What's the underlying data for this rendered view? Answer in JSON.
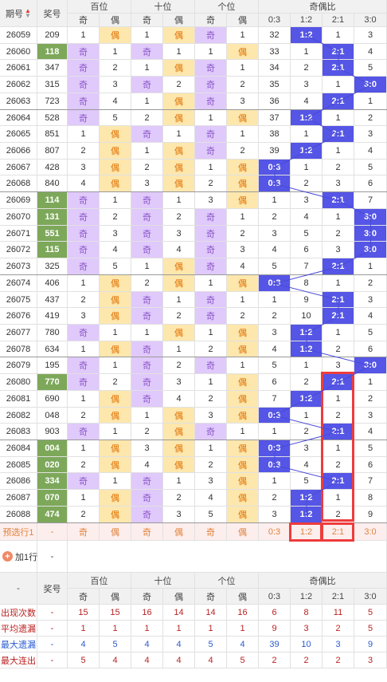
{
  "header": {
    "period": "期号",
    "award": "奖号",
    "groups": [
      "百位",
      "十位",
      "个位",
      "奇偶比"
    ],
    "sub_ji": "奇",
    "sub_ou": "偶",
    "ratios": [
      "0:3",
      "1:2",
      "2:1",
      "3:0"
    ]
  },
  "rows": [
    {
      "p": "26059",
      "a": "209",
      "h": "偶",
      "hm": 1,
      "t": "偶",
      "tm": 1,
      "u": "奇",
      "um": 1,
      "r": [
        "32",
        "1:2",
        "1",
        "3"
      ],
      "ri": 1
    },
    {
      "p": "26060",
      "a": "118",
      "h": "奇",
      "hm": 1,
      "t": "奇",
      "tm": 1,
      "u": "偶",
      "um": 1,
      "r": [
        "33",
        "1",
        "2:1",
        "4"
      ],
      "ri": 2
    },
    {
      "p": "26061",
      "a": "347",
      "h": "奇",
      "hm": 2,
      "t": "偶",
      "tm": 1,
      "u": "奇",
      "um": 1,
      "r": [
        "34",
        "2",
        "2:1",
        "5"
      ],
      "ri": 2
    },
    {
      "p": "26062",
      "a": "315",
      "h": "奇",
      "hm": 3,
      "t": "奇",
      "tm": 2,
      "u": "奇",
      "um": 2,
      "r": [
        "35",
        "3",
        "1",
        "3:0"
      ],
      "ri": 3
    },
    {
      "p": "26063",
      "a": "723",
      "h": "奇",
      "hm": 4,
      "t": "偶",
      "tm": 1,
      "u": "奇",
      "um": 3,
      "r": [
        "36",
        "4",
        "2:1",
        "1"
      ],
      "ri": 2
    },
    {
      "p": "26064",
      "a": "528",
      "h": "奇",
      "hm": 5,
      "t": "偶",
      "tm": 2,
      "u": "偶",
      "um": 1,
      "r": [
        "37",
        "1:2",
        "1",
        "2"
      ],
      "ri": 1
    },
    {
      "p": "26065",
      "a": "851",
      "h": "偶",
      "hm": 1,
      "t": "奇",
      "tm": 1,
      "u": "奇",
      "um": 1,
      "r": [
        "38",
        "1",
        "2:1",
        "3"
      ],
      "ri": 2
    },
    {
      "p": "26066",
      "a": "807",
      "h": "偶",
      "hm": 2,
      "t": "偶",
      "tm": 1,
      "u": "奇",
      "um": 2,
      "r": [
        "39",
        "1:2",
        "1",
        "4"
      ],
      "ri": 1
    },
    {
      "p": "26067",
      "a": "428",
      "h": "偶",
      "hm": 3,
      "t": "偶",
      "tm": 2,
      "u": "偶",
      "um": 1,
      "r": [
        "0:3",
        "1",
        "2",
        "5"
      ],
      "ri": 0
    },
    {
      "p": "26068",
      "a": "840",
      "h": "偶",
      "hm": 4,
      "t": "偶",
      "tm": 3,
      "u": "偶",
      "um": 2,
      "r": [
        "0:3",
        "2",
        "3",
        "6"
      ],
      "ri": 0
    },
    {
      "p": "26069",
      "a": "114",
      "h": "奇",
      "hm": 1,
      "t": "奇",
      "tm": 1,
      "u": "偶",
      "um": 3,
      "r": [
        "1",
        "3",
        "2:1",
        "7"
      ],
      "ri": 2
    },
    {
      "p": "26070",
      "a": "131",
      "h": "奇",
      "hm": 2,
      "t": "奇",
      "tm": 2,
      "u": "奇",
      "um": 1,
      "r": [
        "2",
        "4",
        "1",
        "3:0"
      ],
      "ri": 3
    },
    {
      "p": "26071",
      "a": "551",
      "h": "奇",
      "hm": 3,
      "t": "奇",
      "tm": 3,
      "u": "奇",
      "um": 2,
      "r": [
        "3",
        "5",
        "2",
        "3:0"
      ],
      "ri": 3
    },
    {
      "p": "26072",
      "a": "115",
      "h": "奇",
      "hm": 4,
      "t": "奇",
      "tm": 4,
      "u": "奇",
      "um": 3,
      "r": [
        "4",
        "6",
        "3",
        "3:0"
      ],
      "ri": 3
    },
    {
      "p": "26073",
      "a": "325",
      "h": "奇",
      "hm": 5,
      "t": "偶",
      "tm": 1,
      "u": "奇",
      "um": 4,
      "r": [
        "5",
        "7",
        "2:1",
        "1"
      ],
      "ri": 2
    },
    {
      "p": "26074",
      "a": "406",
      "h": "偶",
      "hm": 1,
      "t": "偶",
      "tm": 2,
      "u": "偶",
      "um": 1,
      "r": [
        "0:3",
        "8",
        "1",
        "2"
      ],
      "ri": 0
    },
    {
      "p": "26075",
      "a": "437",
      "h": "偶",
      "hm": 2,
      "t": "奇",
      "tm": 1,
      "u": "奇",
      "um": 1,
      "r": [
        "1",
        "9",
        "2:1",
        "3"
      ],
      "ri": 2
    },
    {
      "p": "26076",
      "a": "419",
      "h": "偶",
      "hm": 3,
      "t": "奇",
      "tm": 2,
      "u": "奇",
      "um": 2,
      "r": [
        "2",
        "10",
        "2:1",
        "4"
      ],
      "ri": 2
    },
    {
      "p": "26077",
      "a": "780",
      "h": "奇",
      "hm": 1,
      "t": "偶",
      "tm": 1,
      "u": "偶",
      "um": 1,
      "r": [
        "3",
        "1:2",
        "1",
        "5"
      ],
      "ri": 1
    },
    {
      "p": "26078",
      "a": "634",
      "h": "偶",
      "hm": 1,
      "t": "奇",
      "tm": 1,
      "u": "偶",
      "um": 2,
      "r": [
        "4",
        "1:2",
        "2",
        "6"
      ],
      "ri": 1
    },
    {
      "p": "26079",
      "a": "195",
      "h": "奇",
      "hm": 1,
      "t": "奇",
      "tm": 2,
      "u": "奇",
      "um": 1,
      "r": [
        "5",
        "1",
        "3",
        "3:0"
      ],
      "ri": 3
    },
    {
      "p": "26080",
      "a": "770",
      "h": "奇",
      "hm": 2,
      "t": "奇",
      "tm": 3,
      "u": "偶",
      "um": 1,
      "r": [
        "6",
        "2",
        "2:1",
        "1"
      ],
      "ri": 2
    },
    {
      "p": "26081",
      "a": "690",
      "h": "偶",
      "hm": 1,
      "t": "奇",
      "tm": 4,
      "u": "偶",
      "um": 2,
      "r": [
        "7",
        "1:2",
        "1",
        "2"
      ],
      "ri": 1
    },
    {
      "p": "26082",
      "a": "048",
      "h": "偶",
      "hm": 2,
      "t": "偶",
      "tm": 1,
      "u": "偶",
      "um": 3,
      "r": [
        "0:3",
        "1",
        "2",
        "3"
      ],
      "ri": 0
    },
    {
      "p": "26083",
      "a": "903",
      "h": "奇",
      "hm": 1,
      "t": "偶",
      "tm": 2,
      "u": "奇",
      "um": 1,
      "r": [
        "1",
        "2",
        "2:1",
        "4"
      ],
      "ri": 2
    },
    {
      "p": "26084",
      "a": "004",
      "h": "偶",
      "hm": 1,
      "t": "偶",
      "tm": 3,
      "u": "偶",
      "um": 1,
      "r": [
        "0:3",
        "3",
        "1",
        "5"
      ],
      "ri": 0
    },
    {
      "p": "26085",
      "a": "020",
      "h": "偶",
      "hm": 2,
      "t": "偶",
      "tm": 4,
      "u": "偶",
      "um": 2,
      "r": [
        "0:3",
        "4",
        "2",
        "6"
      ],
      "ri": 0
    },
    {
      "p": "26086",
      "a": "334",
      "h": "奇",
      "hm": 1,
      "t": "奇",
      "tm": 1,
      "u": "偶",
      "um": 3,
      "r": [
        "1",
        "5",
        "2:1",
        "7"
      ],
      "ri": 2
    },
    {
      "p": "26087",
      "a": "070",
      "h": "偶",
      "hm": 1,
      "t": "奇",
      "tm": 2,
      "u": "偶",
      "um": 4,
      "r": [
        "2",
        "1:2",
        "1",
        "8"
      ],
      "ri": 1
    },
    {
      "p": "26088",
      "a": "474",
      "h": "偶",
      "hm": 2,
      "t": "奇",
      "tm": 3,
      "u": "偶",
      "um": 5,
      "r": [
        "3",
        "1:2",
        "2",
        "9"
      ],
      "ri": 1
    }
  ],
  "row_miss_values": [
    {
      "h": [
        "1",
        "偶"
      ],
      "t": [
        "1",
        "偶"
      ],
      "u": [
        "奇",
        "1"
      ]
    },
    {
      "h": [
        "奇",
        "1"
      ],
      "t": [
        "奇",
        "1"
      ],
      "u": [
        "1",
        "偶"
      ]
    },
    {
      "h": [
        "奇",
        "2"
      ],
      "t": [
        "1",
        "偶"
      ],
      "u": [
        "奇",
        "1"
      ]
    },
    {
      "h": [
        "奇",
        "3"
      ],
      "t": [
        "奇",
        "2"
      ],
      "u": [
        "奇",
        "2"
      ]
    },
    {
      "h": [
        "奇",
        "4"
      ],
      "t": [
        "1",
        "偶"
      ],
      "u": [
        "奇",
        "3"
      ]
    },
    {
      "h": [
        "奇",
        "5"
      ],
      "t": [
        "2",
        "偶"
      ],
      "u": [
        "1",
        "偶"
      ]
    },
    {
      "h": [
        "1",
        "偶"
      ],
      "t": [
        "奇",
        "1"
      ],
      "u": [
        "奇",
        "1"
      ]
    },
    {
      "h": [
        "2",
        "偶"
      ],
      "t": [
        "1",
        "偶"
      ],
      "u": [
        "奇",
        "2"
      ]
    },
    {
      "h": [
        "3",
        "偶"
      ],
      "t": [
        "2",
        "偶"
      ],
      "u": [
        "1",
        "偶"
      ]
    },
    {
      "h": [
        "4",
        "偶"
      ],
      "t": [
        "3",
        "偶"
      ],
      "u": [
        "2",
        "偶"
      ]
    },
    {
      "h": [
        "奇",
        "1"
      ],
      "t": [
        "奇",
        "1"
      ],
      "u": [
        "3",
        "偶"
      ]
    },
    {
      "h": [
        "奇",
        "2"
      ],
      "t": [
        "奇",
        "2"
      ],
      "u": [
        "奇",
        "1"
      ]
    },
    {
      "h": [
        "奇",
        "3"
      ],
      "t": [
        "奇",
        "3"
      ],
      "u": [
        "奇",
        "2"
      ]
    },
    {
      "h": [
        "奇",
        "4"
      ],
      "t": [
        "奇",
        "4"
      ],
      "u": [
        "奇",
        "3"
      ]
    },
    {
      "h": [
        "奇",
        "5"
      ],
      "t": [
        "1",
        "偶"
      ],
      "u": [
        "奇",
        "4"
      ]
    },
    {
      "h": [
        "1",
        "偶"
      ],
      "t": [
        "2",
        "偶"
      ],
      "u": [
        "1",
        "偶"
      ]
    },
    {
      "h": [
        "2",
        "偶"
      ],
      "t": [
        "奇",
        "1"
      ],
      "u": [
        "奇",
        "1"
      ]
    },
    {
      "h": [
        "3",
        "偶"
      ],
      "t": [
        "奇",
        "2"
      ],
      "u": [
        "奇",
        "2"
      ]
    },
    {
      "h": [
        "奇",
        "1"
      ],
      "t": [
        "1",
        "偶"
      ],
      "u": [
        "1",
        "偶"
      ]
    },
    {
      "h": [
        "1",
        "偶"
      ],
      "t": [
        "奇",
        "1"
      ],
      "u": [
        "2",
        "偶"
      ]
    },
    {
      "h": [
        "奇",
        "1"
      ],
      "t": [
        "奇",
        "2"
      ],
      "u": [
        "奇",
        "1"
      ]
    },
    {
      "h": [
        "奇",
        "2"
      ],
      "t": [
        "奇",
        "3"
      ],
      "u": [
        "1",
        "偶"
      ]
    },
    {
      "h": [
        "1",
        "偶"
      ],
      "t": [
        "奇",
        "4"
      ],
      "u": [
        "2",
        "偶"
      ]
    },
    {
      "h": [
        "2",
        "偶"
      ],
      "t": [
        "1",
        "偶"
      ],
      "u": [
        "3",
        "偶"
      ]
    },
    {
      "h": [
        "奇",
        "1"
      ],
      "t": [
        "2",
        "偶"
      ],
      "u": [
        "奇",
        "1"
      ]
    },
    {
      "h": [
        "1",
        "偶"
      ],
      "t": [
        "3",
        "偶"
      ],
      "u": [
        "1",
        "偶"
      ]
    },
    {
      "h": [
        "2",
        "偶"
      ],
      "t": [
        "4",
        "偶"
      ],
      "u": [
        "2",
        "偶"
      ]
    },
    {
      "h": [
        "奇",
        "1"
      ],
      "t": [
        "奇",
        "1"
      ],
      "u": [
        "3",
        "偶"
      ]
    },
    {
      "h": [
        "1",
        "偶"
      ],
      "t": [
        "奇",
        "2"
      ],
      "u": [
        "4",
        "偶"
      ]
    },
    {
      "h": [
        "2",
        "偶"
      ],
      "t": [
        "奇",
        "3"
      ],
      "u": [
        "5",
        "偶"
      ]
    }
  ],
  "green_awards": [
    "118",
    "114",
    "131",
    "551",
    "115",
    "770",
    "004",
    "020",
    "334",
    "070",
    "474"
  ],
  "preview": {
    "label": "预选行1",
    "award": "-",
    "cells": [
      "奇",
      "偶",
      "奇",
      "偶",
      "奇",
      "偶",
      "0:3",
      "1:2",
      "2:1",
      "3:0"
    ]
  },
  "add_row": {
    "label": "加1行",
    "value": "-"
  },
  "stats_header": {
    "dash": "-",
    "award": "奖号"
  },
  "stats": [
    {
      "label": "出现次数",
      "award": "-",
      "vals": [
        "15",
        "15",
        "16",
        "14",
        "14",
        "16",
        "6",
        "8",
        "11",
        "5"
      ],
      "color": "red"
    },
    {
      "label": "平均遗漏",
      "award": "-",
      "vals": [
        "1",
        "1",
        "1",
        "1",
        "1",
        "1",
        "9",
        "3",
        "2",
        "5"
      ],
      "color": "red"
    },
    {
      "label": "最大遗漏",
      "award": "-",
      "vals": [
        "4",
        "5",
        "4",
        "4",
        "5",
        "4",
        "39",
        "10",
        "3",
        "9"
      ],
      "color": "blue"
    },
    {
      "label": "最大连出",
      "award": "-",
      "vals": [
        "5",
        "4",
        "4",
        "4",
        "4",
        "5",
        "2",
        "2",
        "2",
        "3"
      ],
      "color": "red"
    }
  ],
  "colors": {
    "ji": "#e0c9fb",
    "ou": "#fde7ad",
    "hot": "#5555e6",
    "green": "#7da85a",
    "red_box": "#ee3c3c"
  }
}
